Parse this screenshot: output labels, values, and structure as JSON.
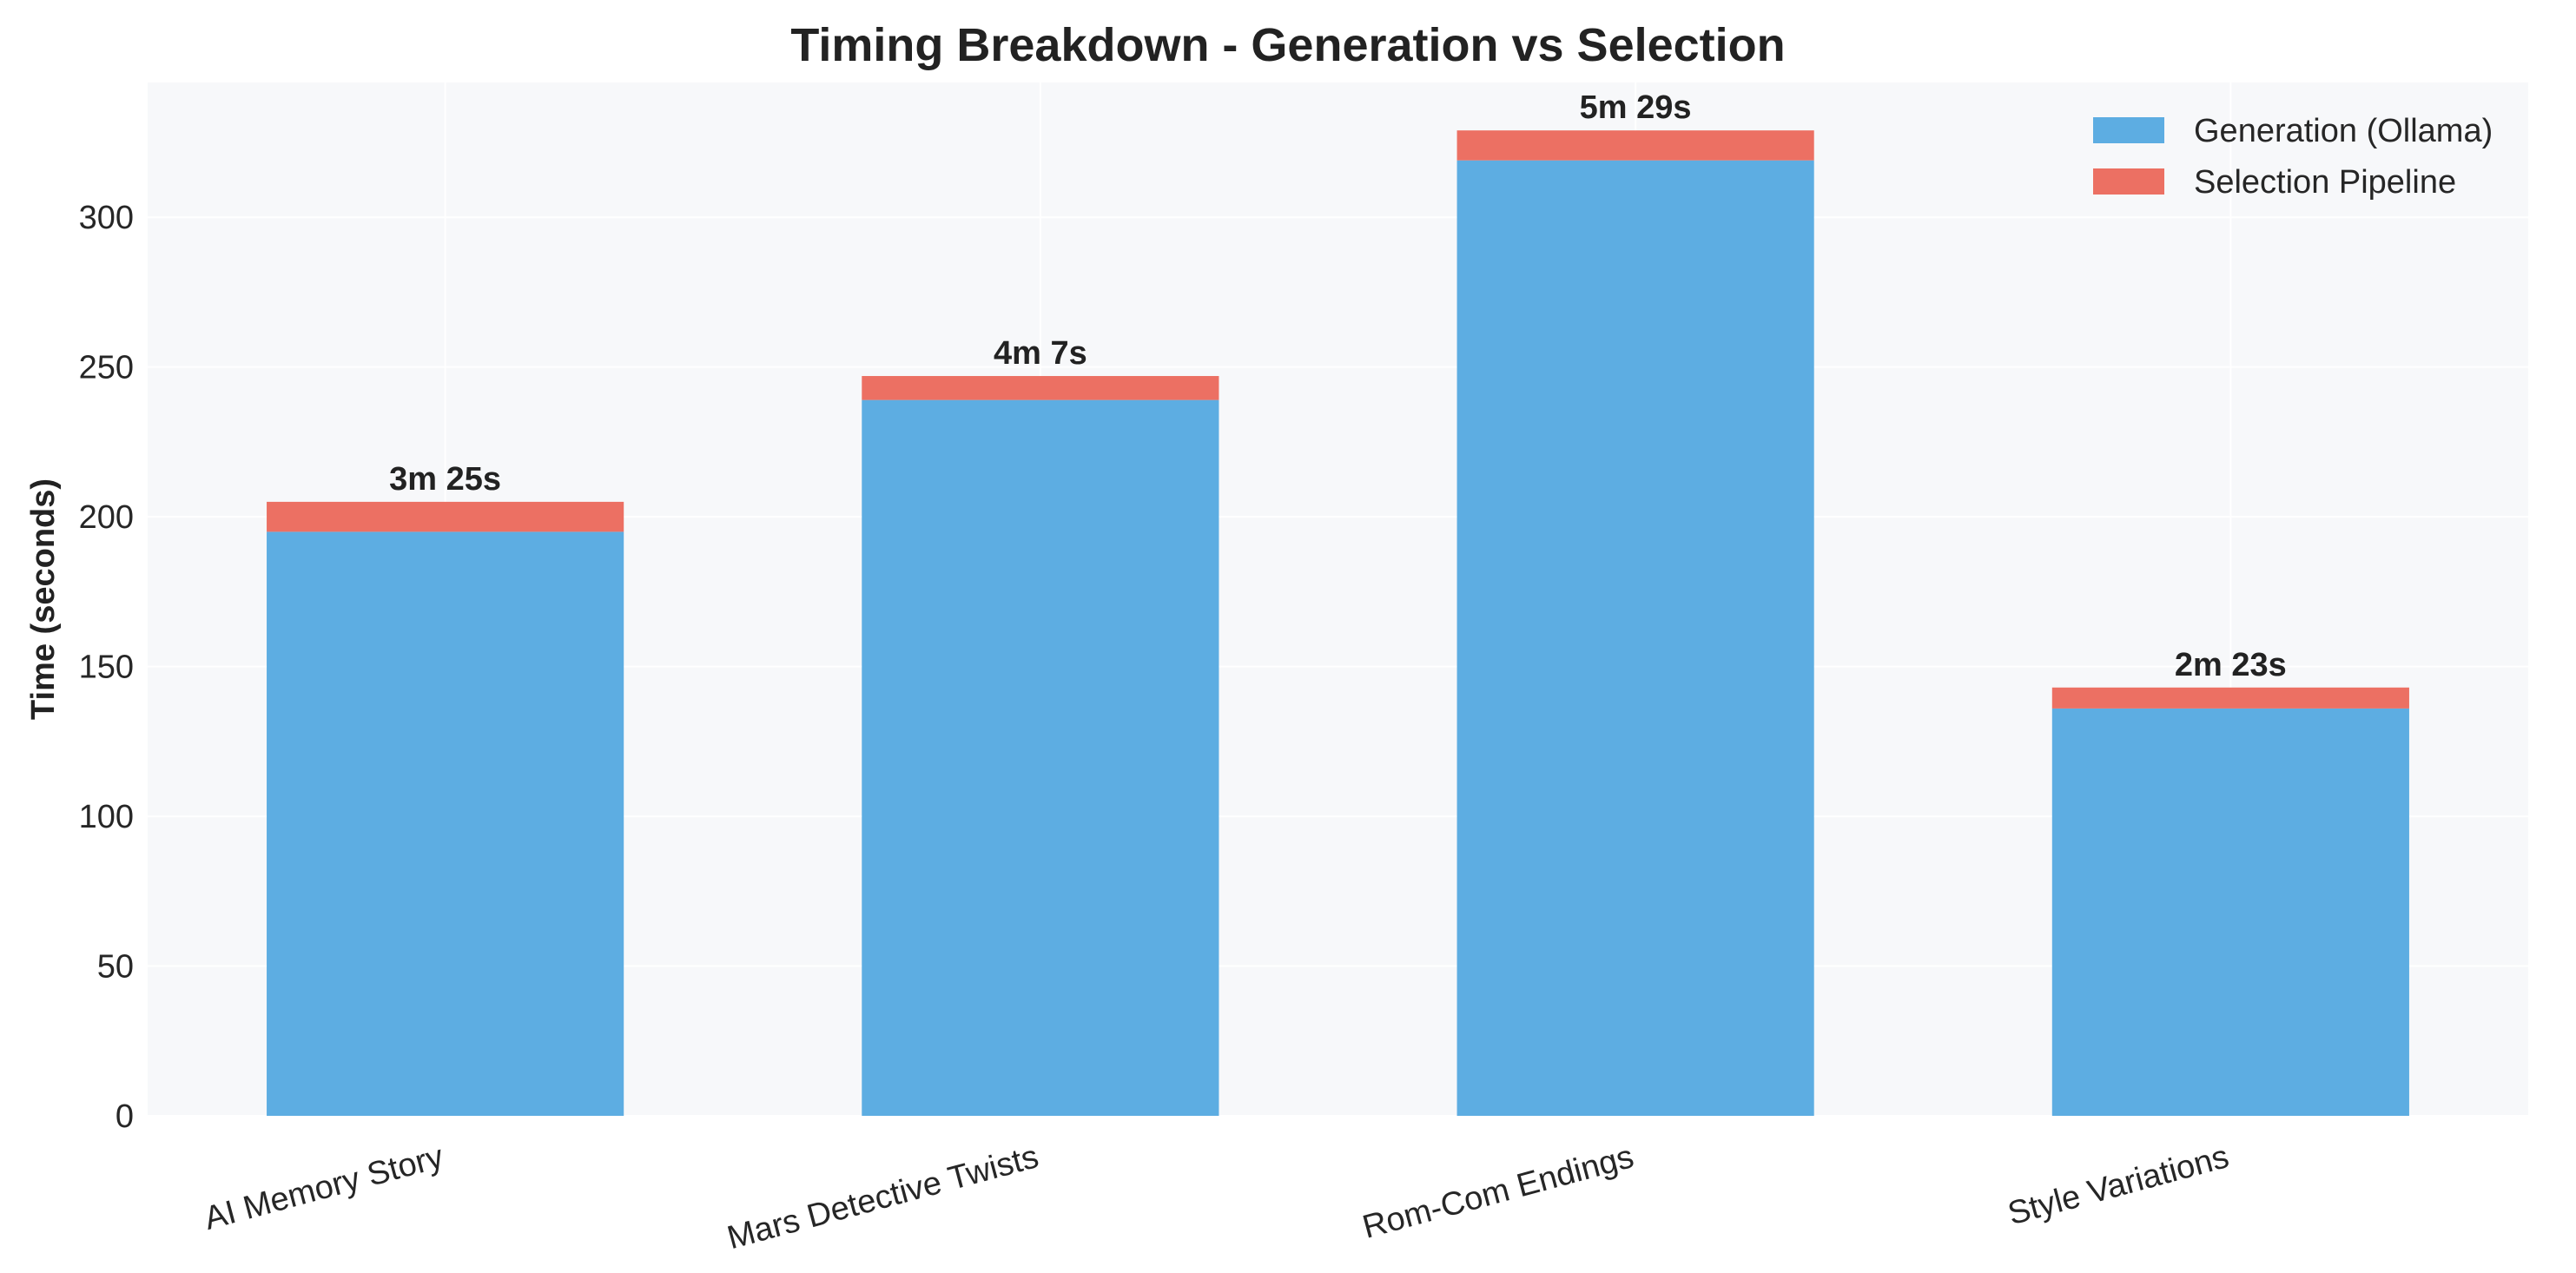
{
  "chart_data": {
    "type": "bar",
    "stacked": true,
    "title": "Timing Breakdown - Generation vs Selection",
    "xlabel": "",
    "ylabel": "Time (seconds)",
    "ylim": [
      0,
      345
    ],
    "yticks": [
      0,
      50,
      100,
      150,
      200,
      250,
      300
    ],
    "grid": true,
    "legend_position": "top-right",
    "categories": [
      "AI Memory Story",
      "Mars Detective Twists",
      "Rom-Com Endings",
      "Style Variations"
    ],
    "series": [
      {
        "name": "Generation (Ollama)",
        "color": "#5DADE2",
        "values": [
          195,
          239,
          319,
          136
        ]
      },
      {
        "name": "Selection Pipeline",
        "color": "#EC7063",
        "values": [
          10,
          8,
          10,
          7
        ]
      }
    ],
    "total_labels": [
      "3m 25s",
      "4m 7s",
      "5m 29s",
      "2m 23s"
    ]
  }
}
